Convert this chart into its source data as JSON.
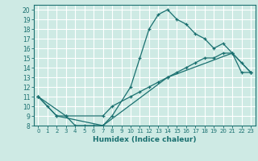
{
  "xlabel": "Humidex (Indice chaleur)",
  "bg_color": "#ceeae4",
  "grid_color": "#ffffff",
  "line_color": "#1a7070",
  "xlim": [
    -0.5,
    23.5
  ],
  "ylim": [
    8,
    20.5
  ],
  "yticks": [
    8,
    9,
    10,
    11,
    12,
    13,
    14,
    15,
    16,
    17,
    18,
    19,
    20
  ],
  "xticks": [
    0,
    1,
    2,
    3,
    4,
    5,
    6,
    7,
    8,
    9,
    10,
    11,
    12,
    13,
    14,
    15,
    16,
    17,
    18,
    19,
    20,
    21,
    22,
    23
  ],
  "curve1_x": [
    0,
    1,
    2,
    3,
    4,
    5,
    6,
    7,
    8,
    10,
    11,
    12,
    13,
    14,
    15,
    16,
    17,
    18,
    19,
    20,
    21,
    22,
    23
  ],
  "curve1_y": [
    11,
    10,
    9,
    9,
    8,
    8,
    8,
    8,
    9,
    12,
    15,
    18,
    19.5,
    20,
    19,
    18.5,
    17.5,
    17,
    16,
    16.5,
    15.5,
    14.5,
    13.5
  ],
  "curve2_x": [
    0,
    3,
    7,
    8,
    10,
    11,
    12,
    13,
    14,
    15,
    16,
    17,
    18,
    19,
    20,
    21,
    22,
    23
  ],
  "curve2_y": [
    11,
    9,
    9,
    10,
    11,
    11.5,
    12,
    12.5,
    13,
    13.5,
    14,
    14.5,
    15,
    15,
    15.5,
    15.5,
    13.5,
    13.5
  ],
  "curve3_x": [
    0,
    2,
    7,
    14,
    21,
    23
  ],
  "curve3_y": [
    11,
    9,
    8,
    13,
    15.5,
    13.5
  ]
}
